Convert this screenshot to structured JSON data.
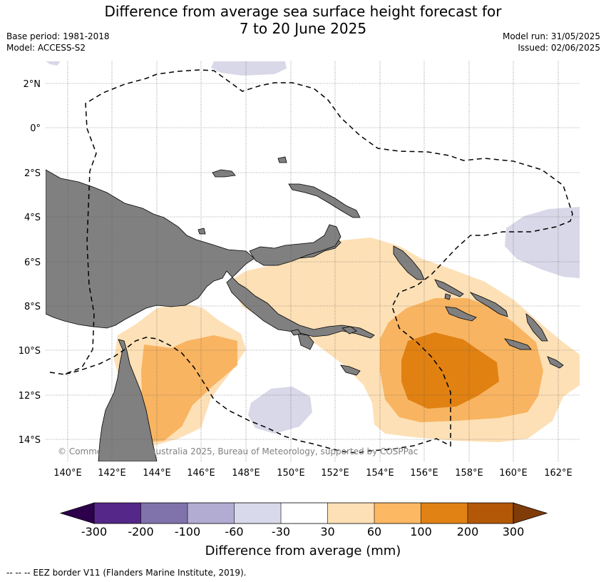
{
  "title_line1": "Difference from average sea surface height forecast for",
  "title_line2": "7 to 20 June 2025",
  "meta_left": [
    "Base period: 1981-2018",
    "Model: ACCESS-S2"
  ],
  "meta_right": [
    "Model run: 31/05/2025",
    "Issued: 02/06/2025"
  ],
  "map": {
    "lat_labels": [
      "2°N",
      "0°",
      "2°S",
      "4°S",
      "6°S",
      "8°S",
      "10°S",
      "12°S",
      "14°S"
    ],
    "lon_labels": [
      "140°E",
      "142°E",
      "144°E",
      "146°E",
      "148°E",
      "150°E",
      "152°E",
      "154°E",
      "156°E",
      "158°E",
      "160°E",
      "162°E"
    ],
    "copyright": "© Commonwealth of Australia 2025, Bureau of Meteorology, supported by COSPPac",
    "colors": {
      "land": "#808080",
      "n60_30": "#d8d8e8",
      "p30_60": "#fde0b6",
      "p60_100": "#f8b461",
      "p100_200": "#e08112",
      "p200_300": "#b35806"
    }
  },
  "colorbar": {
    "tick_labels": [
      "-300",
      "-200",
      "-100",
      "-60",
      "-30",
      "30",
      "60",
      "100",
      "200",
      "300"
    ],
    "colors": [
      "#2d004b",
      "#542788",
      "#8073ac",
      "#b2abd2",
      "#d8daeb",
      "#ffffff",
      "#fee0b6",
      "#fdb863",
      "#e08214",
      "#b35806",
      "#7f3b08"
    ],
    "title": "Difference from average (mm)"
  },
  "footnote": "--  --  -- EEZ border V11 (Flanders Marine Institute, 2019)."
}
